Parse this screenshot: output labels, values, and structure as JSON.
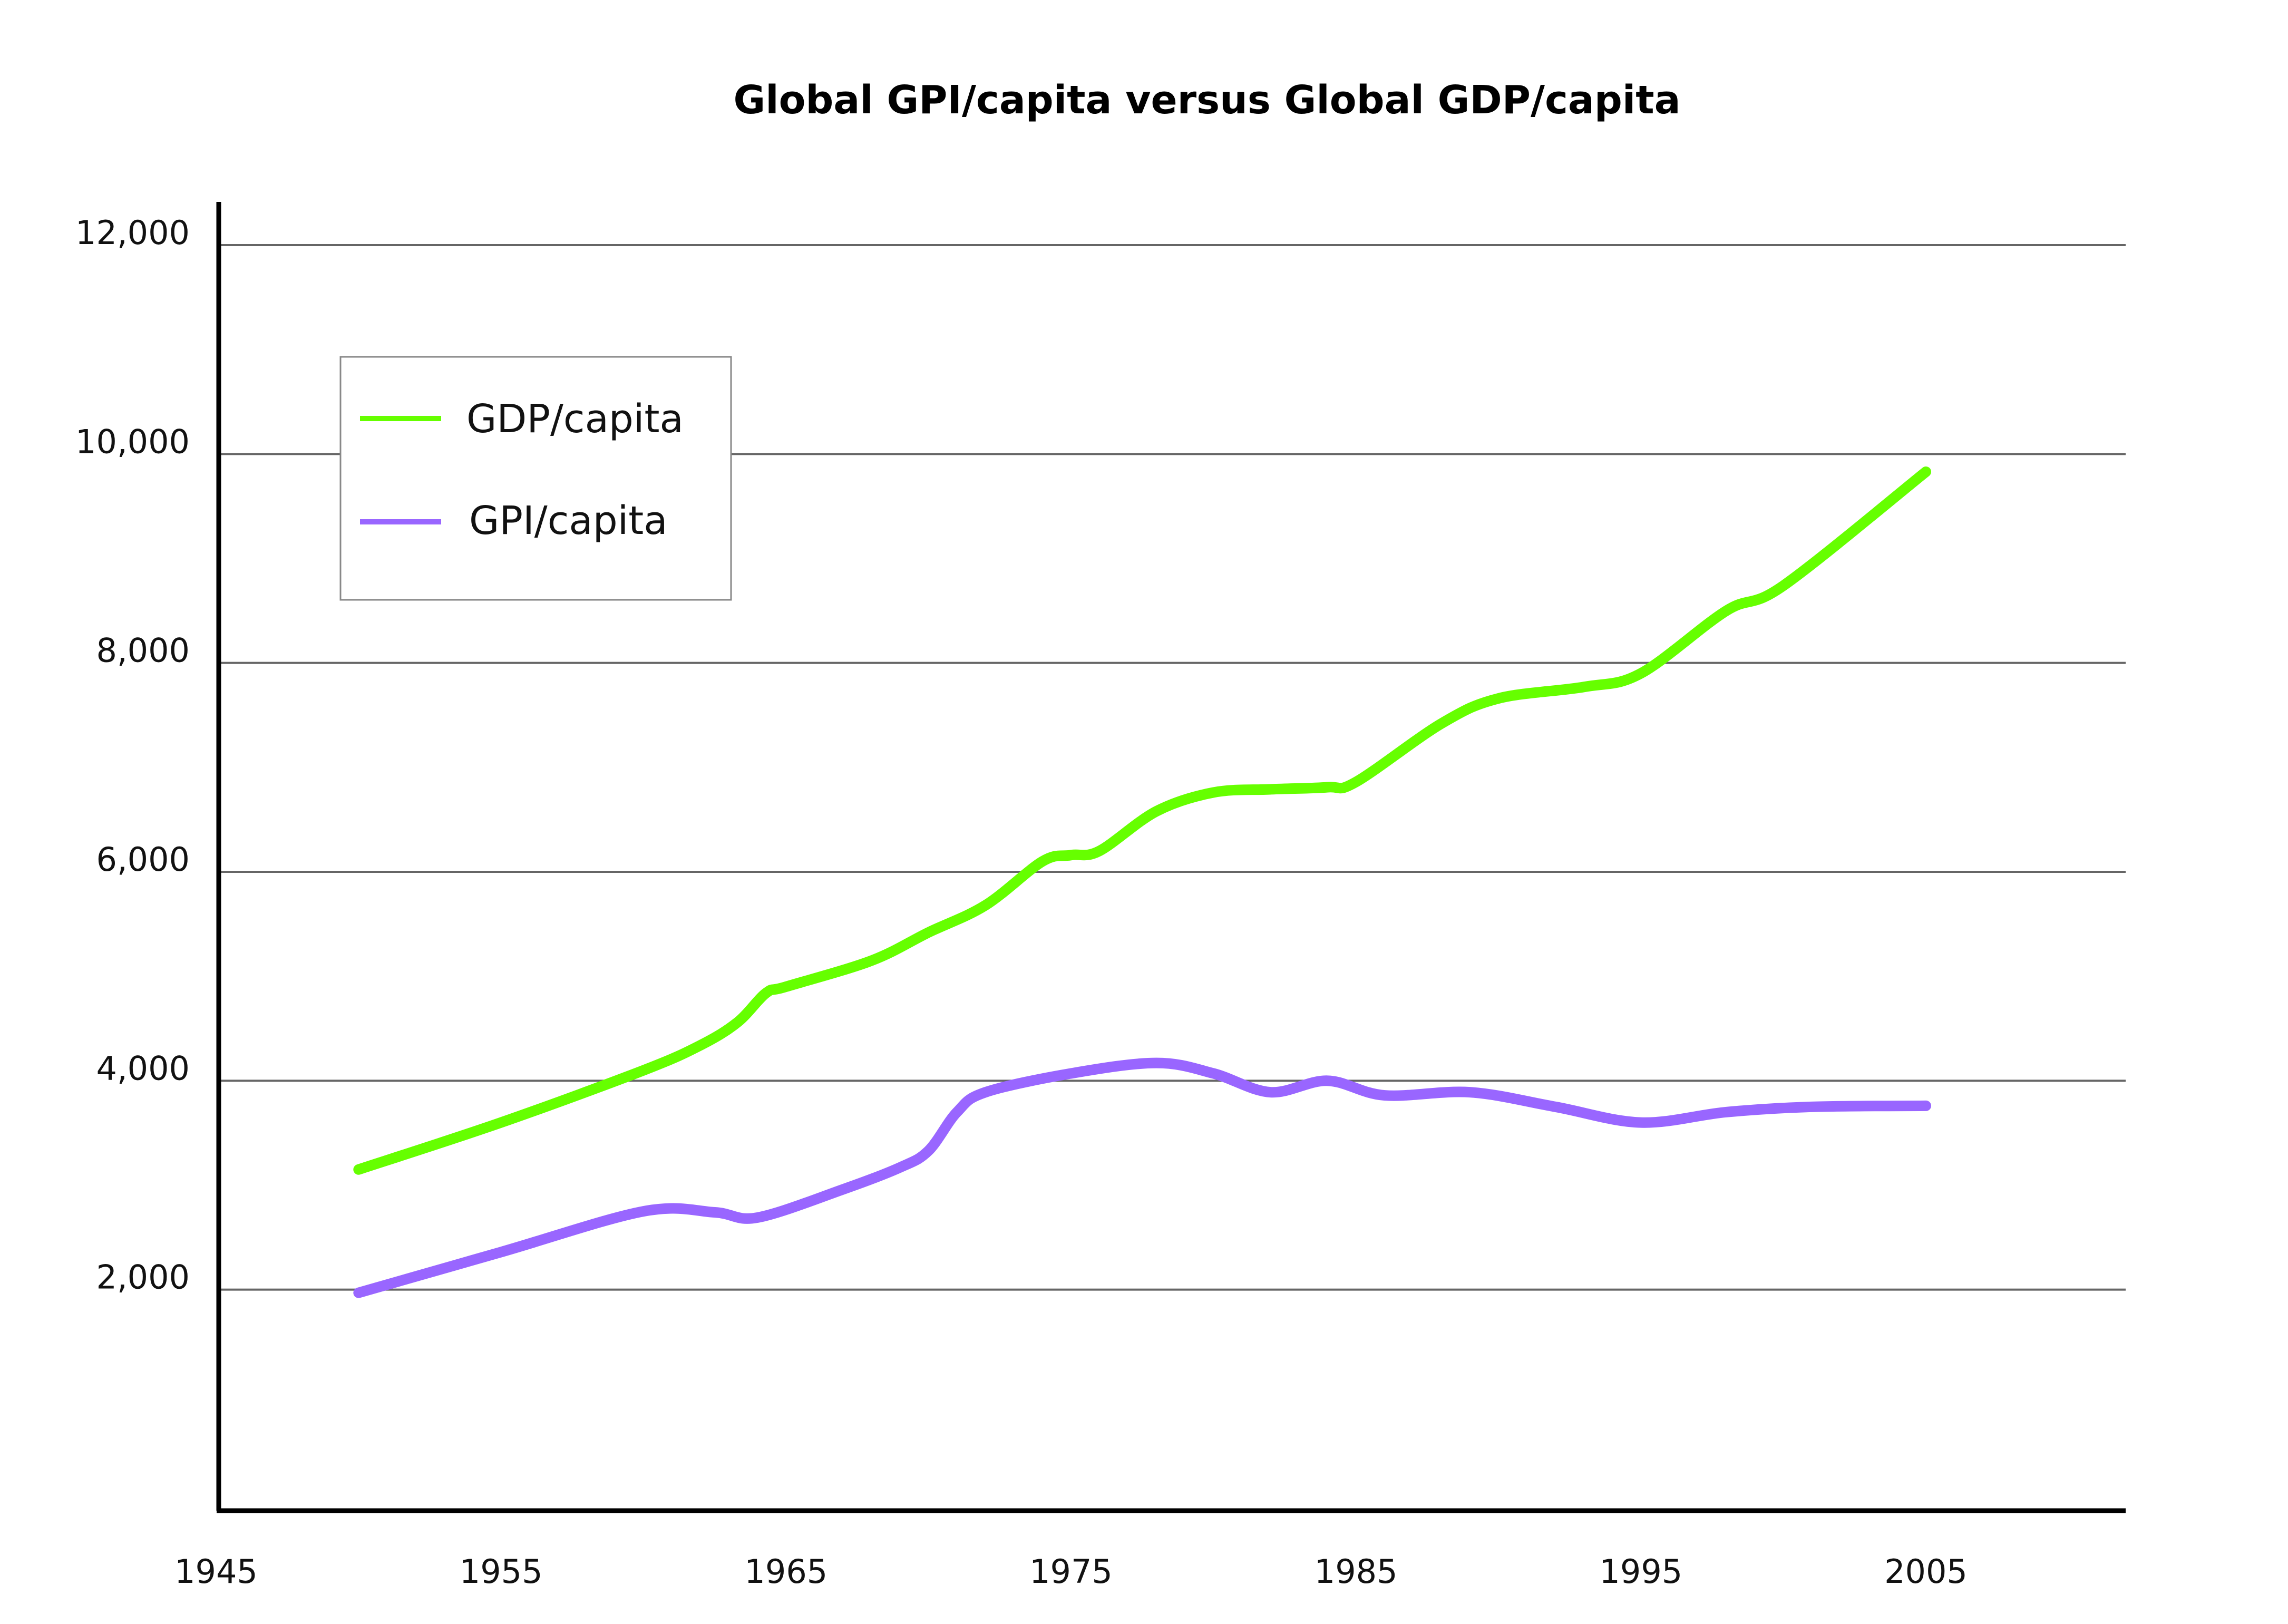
{
  "chart_data": {
    "type": "line",
    "title": "Global GPI/capita versus Global GDP/capita",
    "xlabel": "",
    "ylabel": "",
    "xlim": [
      1945,
      2012
    ],
    "ylim": [
      0,
      12500
    ],
    "x_ticks": [
      1945,
      1955,
      1965,
      1975,
      1985,
      1995,
      2005
    ],
    "x_tick_labels": [
      "1945",
      "1955",
      "1965",
      "1975",
      "1985",
      "1995",
      "2005"
    ],
    "y_ticks": [
      2000,
      4000,
      6000,
      8000,
      10000,
      12000
    ],
    "y_tick_labels": [
      "2,000",
      "4,000",
      "6,000",
      "8,000",
      "10,000",
      "12,000"
    ],
    "grid": "horizontal",
    "legend": {
      "placement": "top-left",
      "entries": [
        "GDP/capita",
        "GPI/capita"
      ]
    },
    "series": [
      {
        "name": "GDP/capita",
        "color": "#66ff00",
        "points": [
          [
            1950,
            3150
          ],
          [
            1955,
            3600
          ],
          [
            1960,
            4100
          ],
          [
            1962,
            4340
          ],
          [
            1963.3,
            4560
          ],
          [
            1964.3,
            4840
          ],
          [
            1965,
            4900
          ],
          [
            1968,
            5150
          ],
          [
            1970,
            5420
          ],
          [
            1972,
            5680
          ],
          [
            1974,
            6100
          ],
          [
            1975,
            6160
          ],
          [
            1976,
            6200
          ],
          [
            1978,
            6580
          ],
          [
            1980,
            6760
          ],
          [
            1982,
            6790
          ],
          [
            1984,
            6810
          ],
          [
            1985,
            6860
          ],
          [
            1988,
            7420
          ],
          [
            1990,
            7660
          ],
          [
            1993,
            7770
          ],
          [
            1995,
            7900
          ],
          [
            1998,
            8500
          ],
          [
            2000,
            8740
          ],
          [
            2005,
            9830
          ]
        ]
      },
      {
        "name": "GPI/capita",
        "color": "#9966ff",
        "points": [
          [
            1950,
            1970
          ],
          [
            1955,
            2360
          ],
          [
            1960,
            2750
          ],
          [
            1962.5,
            2740
          ],
          [
            1964,
            2690
          ],
          [
            1967,
            2960
          ],
          [
            1969,
            3170
          ],
          [
            1970,
            3330
          ],
          [
            1971,
            3700
          ],
          [
            1972,
            3890
          ],
          [
            1975,
            4070
          ],
          [
            1978,
            4170
          ],
          [
            1980,
            4070
          ],
          [
            1982,
            3890
          ],
          [
            1984,
            4000
          ],
          [
            1986,
            3860
          ],
          [
            1989,
            3890
          ],
          [
            1992,
            3750
          ],
          [
            1995,
            3600
          ],
          [
            1998,
            3700
          ],
          [
            2001,
            3750
          ],
          [
            2005,
            3760
          ]
        ]
      }
    ]
  }
}
